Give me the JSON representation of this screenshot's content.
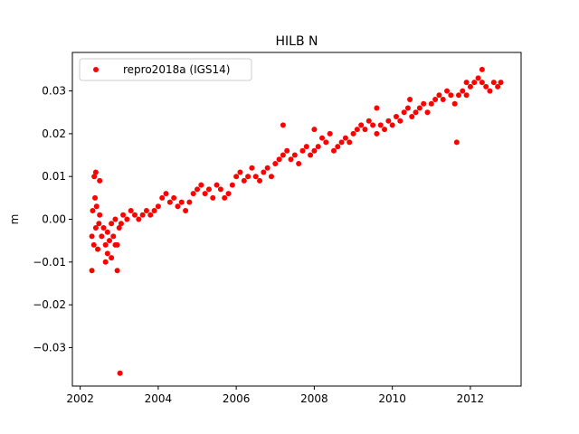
{
  "chart_data": {
    "type": "scatter",
    "title": "HILB N",
    "xlabel": "",
    "ylabel": "m",
    "xlim": [
      2001.8,
      2013.3
    ],
    "ylim": [
      -0.039,
      0.039
    ],
    "xticks": [
      2002,
      2004,
      2006,
      2008,
      2010,
      2012
    ],
    "xtick_labels": [
      "2002",
      "2004",
      "2006",
      "2008",
      "2010",
      "2012"
    ],
    "yticks": [
      -0.03,
      -0.02,
      -0.01,
      0.0,
      0.01,
      0.02,
      0.03
    ],
    "ytick_labels": [
      "−0.03",
      "−0.02",
      "−0.01",
      "0.00",
      "0.01",
      "0.02",
      "0.03"
    ],
    "grid": false,
    "legend_position": "upper left",
    "series": [
      {
        "name": "repro2018a (IGS14)",
        "color": "#ff0000",
        "marker": "circle",
        "x": [
          2002.3,
          2002.32,
          2002.35,
          2002.38,
          2002.4,
          2002.42,
          2002.45,
          2002.48,
          2002.5,
          2002.55,
          2002.6,
          2002.65,
          2002.7,
          2002.75,
          2002.8,
          2002.85,
          2002.9,
          2002.95,
          2003.0,
          2003.05,
          2003.1,
          2003.2,
          2003.3,
          2003.4,
          2003.5,
          2003.6,
          2003.7,
          2003.8,
          2003.9,
          2004.0,
          2004.1,
          2004.2,
          2004.3,
          2004.4,
          2004.5,
          2004.6,
          2004.7,
          2004.8,
          2004.9,
          2005.0,
          2005.1,
          2005.2,
          2005.3,
          2005.4,
          2005.5,
          2005.6,
          2005.7,
          2005.8,
          2005.9,
          2006.0,
          2006.1,
          2006.2,
          2006.3,
          2006.4,
          2006.5,
          2006.6,
          2006.7,
          2006.8,
          2006.9,
          2007.0,
          2007.1,
          2007.2,
          2007.3,
          2007.4,
          2007.5,
          2007.6,
          2007.7,
          2007.8,
          2007.9,
          2008.0,
          2008.1,
          2008.2,
          2008.3,
          2008.4,
          2008.5,
          2008.6,
          2008.7,
          2008.8,
          2008.9,
          2009.0,
          2009.1,
          2009.2,
          2009.3,
          2009.4,
          2009.5,
          2009.6,
          2009.7,
          2009.8,
          2009.9,
          2010.0,
          2010.1,
          2010.2,
          2010.3,
          2010.4,
          2010.5,
          2010.6,
          2010.7,
          2010.8,
          2010.9,
          2011.0,
          2011.1,
          2011.2,
          2011.3,
          2011.4,
          2011.5,
          2011.6,
          2011.7,
          2011.8,
          2011.9,
          2012.0,
          2012.1,
          2012.2,
          2012.3,
          2012.4,
          2012.5,
          2012.6,
          2012.7,
          2012.78,
          2002.36,
          2002.4,
          2002.3,
          2002.5,
          2002.7,
          2002.65,
          2002.8,
          2002.95,
          2002.9,
          2003.02,
          2007.2,
          2008.0,
          2009.6,
          2010.45,
          2011.65,
          2012.3,
          2011.9
        ],
        "y": [
          -0.004,
          0.002,
          -0.006,
          0.005,
          -0.002,
          0.003,
          -0.007,
          -0.001,
          0.001,
          -0.004,
          -0.002,
          -0.006,
          -0.003,
          -0.005,
          -0.001,
          -0.004,
          0.0,
          -0.006,
          -0.002,
          -0.001,
          0.001,
          0.0,
          0.002,
          0.001,
          0.0,
          0.001,
          0.002,
          0.001,
          0.002,
          0.003,
          0.005,
          0.006,
          0.004,
          0.005,
          0.003,
          0.004,
          0.002,
          0.004,
          0.006,
          0.007,
          0.008,
          0.006,
          0.007,
          0.005,
          0.008,
          0.007,
          0.005,
          0.006,
          0.008,
          0.01,
          0.011,
          0.009,
          0.01,
          0.012,
          0.01,
          0.009,
          0.011,
          0.012,
          0.01,
          0.013,
          0.014,
          0.015,
          0.016,
          0.014,
          0.015,
          0.013,
          0.016,
          0.017,
          0.015,
          0.016,
          0.017,
          0.019,
          0.018,
          0.02,
          0.016,
          0.017,
          0.018,
          0.019,
          0.018,
          0.02,
          0.021,
          0.022,
          0.021,
          0.023,
          0.022,
          0.02,
          0.022,
          0.021,
          0.023,
          0.022,
          0.024,
          0.023,
          0.025,
          0.026,
          0.024,
          0.025,
          0.026,
          0.027,
          0.025,
          0.027,
          0.028,
          0.029,
          0.028,
          0.03,
          0.029,
          0.027,
          0.029,
          0.03,
          0.029,
          0.031,
          0.032,
          0.033,
          0.032,
          0.031,
          0.03,
          0.032,
          0.031,
          0.032,
          0.01,
          0.011,
          -0.012,
          0.009,
          -0.008,
          -0.01,
          -0.009,
          -0.012,
          -0.006,
          -0.036,
          0.022,
          0.021,
          0.026,
          0.028,
          0.018,
          0.035,
          0.032
        ]
      }
    ]
  }
}
